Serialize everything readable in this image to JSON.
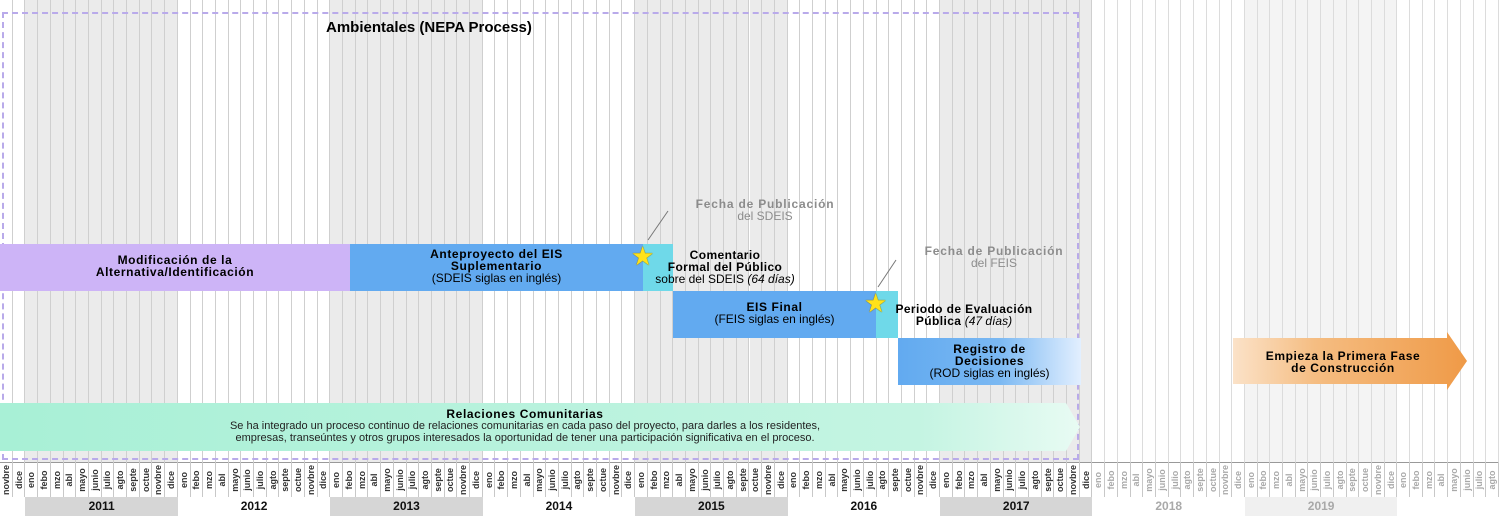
{
  "title": "Ambientales (NEPA Process)",
  "timeline": {
    "months": [
      "novbre",
      "dice",
      "eno",
      "febo",
      "mzo",
      "abl",
      "mayo",
      "junio",
      "julio",
      "agto",
      "septe",
      "octue",
      "novbre",
      "dice",
      "eno",
      "febo",
      "mzo",
      "abl",
      "mayo",
      "junio",
      "julio",
      "agto",
      "septe",
      "octue",
      "novbre",
      "dice",
      "eno",
      "febo",
      "mzo",
      "abl",
      "mayo",
      "junio",
      "julio",
      "agto",
      "septe",
      "octue",
      "novbre",
      "dice",
      "eno",
      "febo",
      "mzo",
      "abl",
      "mayo",
      "junio",
      "julio",
      "agto",
      "septe",
      "octue",
      "novbre",
      "dice",
      "eno",
      "febo",
      "mzo",
      "abl",
      "mayo",
      "junio",
      "julio",
      "agto",
      "septe",
      "octue",
      "novbre",
      "dice",
      "eno",
      "febo",
      "mzo",
      "abl",
      "mayo",
      "junio",
      "julio",
      "agto",
      "septe",
      "octue",
      "novbre",
      "dice",
      "eno",
      "febo",
      "mzo",
      "abl",
      "mayo",
      "junio",
      "julio",
      "agto",
      "septe",
      "octue",
      "novbre",
      "dice",
      "eno",
      "febo",
      "mzo",
      "abl",
      "mayo",
      "junio",
      "julio",
      "agto",
      "septe",
      "octue",
      "novbre",
      "dice",
      "eno",
      "febo",
      "mzo",
      "abl",
      "mayo",
      "junio",
      "julio",
      "agto",
      "septe",
      "octue",
      "novbre",
      "dice",
      "eno",
      "febo",
      "mzo",
      "abl",
      "mayo",
      "junio",
      "julio",
      "agto"
    ],
    "years": [
      "2011",
      "2012",
      "2013",
      "2014",
      "2015",
      "2016",
      "2017",
      "2018",
      "2019"
    ]
  },
  "phases": {
    "modificacion": {
      "line1": "Modificación de la",
      "line2": "Alternativa/Identificación"
    },
    "sdeis": {
      "line1": "Anteproyecto del EIS",
      "line2": "Suplementario",
      "line3": "(SDEIS siglas en inglés)"
    },
    "comentario": {
      "line1": "Comentario",
      "line2": "Formal del Público",
      "line3": "sobre del SDEIS",
      "line3_italic": "(64 días)"
    },
    "feis": {
      "line1": "EIS Final",
      "line2": "(FEIS siglas en inglés)"
    },
    "evaluacion": {
      "line1": "Periodo de Evaluación",
      "line2": "Pública",
      "line2_italic": "(47 días)"
    },
    "rod": {
      "line1": "Registro de",
      "line2": "Decisiones",
      "line3": "(ROD siglas en inglés)"
    }
  },
  "milestones": {
    "sdeis_pub": {
      "line1": "Fecha de Publicación",
      "line2": "del SDEIS"
    },
    "feis_pub": {
      "line1": "Fecha de Publicación",
      "line2": "del FEIS"
    }
  },
  "community": {
    "title": "Relaciones Comunitarias",
    "line1": "Se ha integrado un proceso continuo de relaciones comunitarias en cada paso del proyecto, para darles a los residentes,",
    "line2": "empresas, transeúntes y otros grupos interesados la oportunidad de tener una participación significativa en el proceso."
  },
  "construction": {
    "line1": "Empieza la Primera Fase",
    "line2": "de Construcción"
  },
  "colors": {
    "purple": "#cdb4f7",
    "blue": "#62aaf0",
    "cyan": "#6fd9e9",
    "green": "#a8f0d6",
    "orange": "#f0a050",
    "star": "#ffe21a",
    "nepa_border": "#b9aaea"
  }
}
